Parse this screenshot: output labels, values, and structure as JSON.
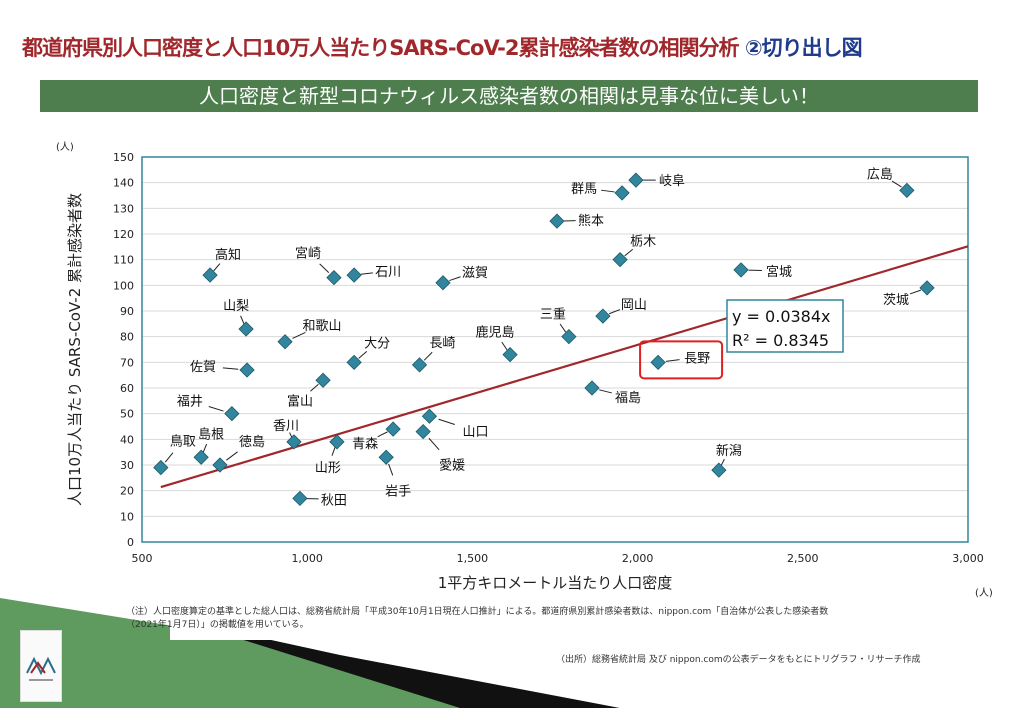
{
  "title": {
    "main": "都道府県別人口密度と人口10万人当たりSARS-CoV-2累計感染者数の相関分析",
    "sub": "②切り出し図"
  },
  "banner": "人口密度と新型コロナウィルス感染者数の相関は見事な位に美しい！",
  "note_line1": "（注）人口密度算定の基準とした総人口は、総務省統計局「平成30年10月1日現在人口推計」による。都道府県別累計感染者数は、nippon.com「自治体が公表した感染者数",
  "note_line2": "（2021年1月7日）」の掲載値を用いている。",
  "source": "（出所）総務省統計局 及び nippon.comの公表データをもとにトリグラフ・リサーチ作成",
  "colors": {
    "marker": "#31859c",
    "trend": "#a0282c",
    "axis": "#31859c",
    "highlight": "#e02020"
  },
  "chart_data": {
    "type": "scatter",
    "xlabel": "1平方キロメートル当たり人口密度",
    "ylabel": "人口10万人当たり SARS-CoV-2 累計感染者数",
    "x_unit": "(人)",
    "y_unit": "(人)",
    "xlim": [
      500,
      3000
    ],
    "ylim": [
      0,
      150
    ],
    "xticks": [
      "500",
      "1,000",
      "1,500",
      "2,000",
      "2,500",
      "3,000"
    ],
    "yticks": [
      "0",
      "10",
      "20",
      "30",
      "40",
      "50",
      "60",
      "70",
      "80",
      "90",
      "100",
      "110",
      "120",
      "130",
      "140",
      "150"
    ],
    "grid": "horizontal",
    "trendline": {
      "slope": 0.0384,
      "equation": "y = 0.0384x",
      "r2": "R² = 0.8345"
    },
    "highlight": "長野",
    "points": [
      {
        "name": "鳥取",
        "x": 557,
        "y": 29
      },
      {
        "name": "島根",
        "x": 679,
        "y": 33
      },
      {
        "name": "徳島",
        "x": 736,
        "y": 30
      },
      {
        "name": "福井",
        "x": 772,
        "y": 50
      },
      {
        "name": "佐賀",
        "x": 818,
        "y": 67
      },
      {
        "name": "山梨",
        "x": 815,
        "y": 83
      },
      {
        "name": "高知",
        "x": 706,
        "y": 104
      },
      {
        "name": "和歌山",
        "x": 933,
        "y": 78
      },
      {
        "name": "香川",
        "x": 960,
        "y": 39
      },
      {
        "name": "富山",
        "x": 1048,
        "y": 63
      },
      {
        "name": "秋田",
        "x": 978,
        "y": 17
      },
      {
        "name": "山形",
        "x": 1090,
        "y": 39
      },
      {
        "name": "宮崎",
        "x": 1081,
        "y": 103
      },
      {
        "name": "石川",
        "x": 1142,
        "y": 104
      },
      {
        "name": "大分",
        "x": 1142,
        "y": 70
      },
      {
        "name": "青森",
        "x": 1260,
        "y": 44
      },
      {
        "name": "岩手",
        "x": 1239,
        "y": 33
      },
      {
        "name": "愛媛",
        "x": 1351,
        "y": 43
      },
      {
        "name": "山口",
        "x": 1370,
        "y": 49
      },
      {
        "name": "長崎",
        "x": 1340,
        "y": 69
      },
      {
        "name": "滋賀",
        "x": 1411,
        "y": 101
      },
      {
        "name": "鹿児島",
        "x": 1614,
        "y": 73
      },
      {
        "name": "熊本",
        "x": 1756,
        "y": 125
      },
      {
        "name": "三重",
        "x": 1792,
        "y": 80
      },
      {
        "name": "福島",
        "x": 1862,
        "y": 60
      },
      {
        "name": "群馬",
        "x": 1953,
        "y": 136
      },
      {
        "name": "岐阜",
        "x": 1995,
        "y": 141
      },
      {
        "name": "栃木",
        "x": 1947,
        "y": 110
      },
      {
        "name": "岡山",
        "x": 1895,
        "y": 88
      },
      {
        "name": "長野",
        "x": 2062,
        "y": 70
      },
      {
        "name": "新潟",
        "x": 2246,
        "y": 28
      },
      {
        "name": "宮城",
        "x": 2313,
        "y": 106
      },
      {
        "name": "広島",
        "x": 2815,
        "y": 137
      },
      {
        "name": "茨城",
        "x": 2876,
        "y": 99
      }
    ]
  }
}
